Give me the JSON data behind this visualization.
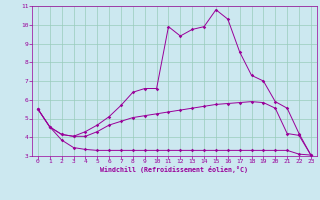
{
  "xlabel": "Windchill (Refroidissement éolien,°C)",
  "bg_color": "#cce8f0",
  "line_color": "#990099",
  "xlim": [
    -0.5,
    23.5
  ],
  "ylim": [
    3,
    11
  ],
  "xticks": [
    0,
    1,
    2,
    3,
    4,
    5,
    6,
    7,
    8,
    9,
    10,
    11,
    12,
    13,
    14,
    15,
    16,
    17,
    18,
    19,
    20,
    21,
    22,
    23
  ],
  "yticks": [
    3,
    4,
    5,
    6,
    7,
    8,
    9,
    10,
    11
  ],
  "line1_x": [
    0,
    1,
    2,
    3,
    4,
    5,
    6,
    7,
    8,
    9,
    10,
    11,
    12,
    13,
    14,
    15,
    16,
    17,
    18,
    19,
    20,
    21,
    22,
    23
  ],
  "line1_y": [
    5.5,
    4.55,
    3.85,
    3.45,
    3.35,
    3.3,
    3.3,
    3.3,
    3.3,
    3.3,
    3.3,
    3.3,
    3.3,
    3.3,
    3.3,
    3.3,
    3.3,
    3.3,
    3.3,
    3.3,
    3.3,
    3.3,
    3.1,
    3.05
  ],
  "line2_x": [
    0,
    1,
    2,
    3,
    4,
    5,
    6,
    7,
    8,
    9,
    10,
    11,
    12,
    13,
    14,
    15,
    16,
    17,
    18,
    19,
    20,
    21,
    22,
    23
  ],
  "line2_y": [
    5.5,
    4.55,
    4.15,
    4.05,
    4.05,
    4.3,
    4.65,
    4.85,
    5.05,
    5.15,
    5.25,
    5.35,
    5.45,
    5.55,
    5.65,
    5.75,
    5.8,
    5.85,
    5.9,
    5.85,
    5.55,
    4.2,
    4.1,
    3.05
  ],
  "line3_x": [
    0,
    1,
    2,
    3,
    4,
    5,
    6,
    7,
    8,
    9,
    10,
    11,
    12,
    13,
    14,
    15,
    16,
    17,
    18,
    19,
    20,
    21,
    22,
    23
  ],
  "line3_y": [
    5.5,
    4.55,
    4.15,
    4.05,
    4.3,
    4.65,
    5.1,
    5.7,
    6.4,
    6.6,
    6.6,
    9.9,
    9.4,
    9.75,
    9.9,
    10.8,
    10.3,
    8.55,
    7.3,
    7.0,
    5.9,
    5.55,
    4.2,
    3.05
  ],
  "grid_color": "#99ccbb",
  "marker": "D",
  "markersize": 1.8,
  "linewidth": 0.7
}
